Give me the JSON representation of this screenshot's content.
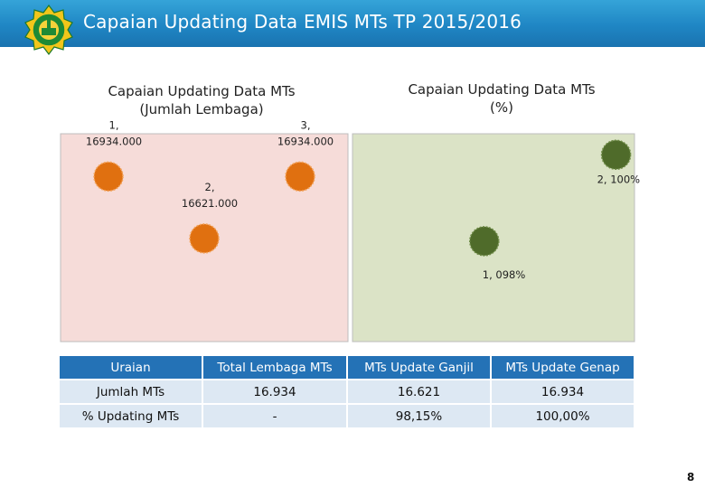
{
  "header": {
    "title": "Capaian Updating Data EMIS MTs TP 2015/2016",
    "logo_icon": "kemenag-logo-icon"
  },
  "chart_data": [
    {
      "type": "scatter",
      "title_lines": [
        "Capaian Updating Data MTs",
        "(Jumlah Lembaga)"
      ],
      "color": "#e07010",
      "background": "#f6dcd9",
      "xlim": [
        0.5,
        3.5
      ],
      "ylim": [
        16100,
        17150
      ],
      "points": [
        {
          "x": 1,
          "y": 16934,
          "label_lines": [
            "1,",
            "16934.000"
          ]
        },
        {
          "x": 2,
          "y": 16621,
          "label_lines": [
            "2,",
            "16621.000"
          ]
        },
        {
          "x": 3,
          "y": 16934,
          "label_lines": [
            "3,",
            "16934.000"
          ]
        }
      ]
    },
    {
      "type": "scatter",
      "title_lines": [
        "Capaian Updating Data MTs",
        "(%)"
      ],
      "color": "#4f6b2a",
      "background": "#dbe3c6",
      "xlim": [
        0,
        2.14
      ],
      "ylim": [
        0.96,
        1.0045
      ],
      "points": [
        {
          "x": 1,
          "y": 0.9815,
          "label": "1, 098%"
        },
        {
          "x": 2,
          "y": 1.0,
          "label": "2, 100%"
        }
      ]
    }
  ],
  "table": {
    "headers": [
      "Uraian",
      "Total Lembaga MTs",
      "MTs Update Ganjil",
      "MTs Update Genap"
    ],
    "rows": [
      [
        "Jumlah MTs",
        "16.934",
        "16.621",
        "16.934"
      ],
      [
        "% Updating MTs",
        "-",
        "98,15%",
        "100,00%"
      ]
    ]
  },
  "page_number": "8"
}
